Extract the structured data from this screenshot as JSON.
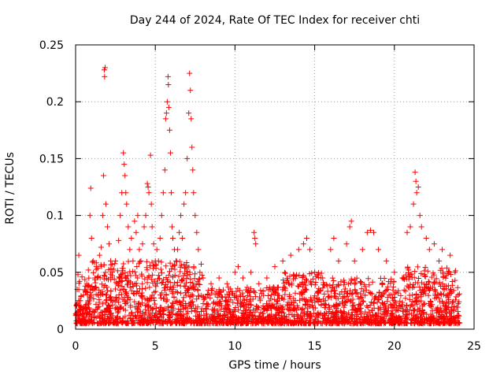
{
  "chart_data": {
    "type": "scatter",
    "title": "Day 244 of 2024, Rate Of TEC Index for receiver chti",
    "xlabel": "GPS time / hours",
    "ylabel": "ROTI / TECUs",
    "xlim": [
      0,
      25
    ],
    "ylim": [
      0,
      0.25
    ],
    "xticks": [
      0,
      5,
      10,
      15,
      20,
      25
    ],
    "yticks": [
      0,
      0.05,
      0.1,
      0.15,
      0.2,
      0.25
    ],
    "xtick_labels": [
      "0",
      "5",
      "10",
      "15",
      "20",
      "25"
    ],
    "ytick_labels": [
      "0",
      "0.05",
      "0.1",
      "0.15",
      "0.2",
      "0.25"
    ],
    "grid": true,
    "marker": "plus",
    "color": "#ff0000",
    "series": [
      {
        "points": [
          [
            0.05,
            0.012
          ],
          [
            0.1,
            0.035
          ],
          [
            0.15,
            0.048
          ],
          [
            0.2,
            0.065
          ],
          [
            0.25,
            0.042
          ],
          [
            0.3,
            0.025
          ],
          [
            0.4,
            0.046
          ],
          [
            0.5,
            0.03
          ],
          [
            0.6,
            0.018
          ],
          [
            0.7,
            0.04
          ],
          [
            0.8,
            0.052
          ],
          [
            0.9,
            0.1
          ],
          [
            0.95,
            0.124
          ],
          [
            1.0,
            0.08
          ],
          [
            1.1,
            0.06
          ],
          [
            1.2,
            0.045
          ],
          [
            1.3,
            0.055
          ],
          [
            1.4,
            0.03
          ],
          [
            1.5,
            0.065
          ],
          [
            1.6,
            0.072
          ],
          [
            1.7,
            0.1
          ],
          [
            1.75,
            0.135
          ],
          [
            1.8,
            0.228
          ],
          [
            1.82,
            0.222
          ],
          [
            1.85,
            0.23
          ],
          [
            1.9,
            0.11
          ],
          [
            2.0,
            0.09
          ],
          [
            2.1,
            0.075
          ],
          [
            2.2,
            0.06
          ],
          [
            2.3,
            0.05
          ],
          [
            2.5,
            0.06
          ],
          [
            2.6,
            0.04
          ],
          [
            2.7,
            0.078
          ],
          [
            2.8,
            0.1
          ],
          [
            2.9,
            0.12
          ],
          [
            3.0,
            0.155
          ],
          [
            3.05,
            0.145
          ],
          [
            3.1,
            0.135
          ],
          [
            3.15,
            0.12
          ],
          [
            3.2,
            0.11
          ],
          [
            3.3,
            0.09
          ],
          [
            3.4,
            0.07
          ],
          [
            3.5,
            0.08
          ],
          [
            3.6,
            0.06
          ],
          [
            3.7,
            0.095
          ],
          [
            3.8,
            0.085
          ],
          [
            3.9,
            0.1
          ],
          [
            4.0,
            0.07
          ],
          [
            4.1,
            0.06
          ],
          [
            4.2,
            0.075
          ],
          [
            4.3,
            0.09
          ],
          [
            4.4,
            0.1
          ],
          [
            4.5,
            0.128
          ],
          [
            4.55,
            0.125
          ],
          [
            4.6,
            0.12
          ],
          [
            4.7,
            0.153
          ],
          [
            4.75,
            0.11
          ],
          [
            4.8,
            0.09
          ],
          [
            4.9,
            0.075
          ],
          [
            5.0,
            0.06
          ],
          [
            5.1,
            0.07
          ],
          [
            5.2,
            0.06
          ],
          [
            5.3,
            0.08
          ],
          [
            5.4,
            0.1
          ],
          [
            5.5,
            0.12
          ],
          [
            5.6,
            0.14
          ],
          [
            5.65,
            0.185
          ],
          [
            5.7,
            0.19
          ],
          [
            5.75,
            0.2
          ],
          [
            5.8,
            0.222
          ],
          [
            5.82,
            0.215
          ],
          [
            5.85,
            0.195
          ],
          [
            5.9,
            0.175
          ],
          [
            5.95,
            0.155
          ],
          [
            6.0,
            0.12
          ],
          [
            6.05,
            0.09
          ],
          [
            6.1,
            0.08
          ],
          [
            6.2,
            0.07
          ],
          [
            6.3,
            0.06
          ],
          [
            6.4,
            0.07
          ],
          [
            6.5,
            0.085
          ],
          [
            6.6,
            0.1
          ],
          [
            6.7,
            0.08
          ],
          [
            6.8,
            0.11
          ],
          [
            6.9,
            0.12
          ],
          [
            7.0,
            0.15
          ],
          [
            7.1,
            0.19
          ],
          [
            7.15,
            0.225
          ],
          [
            7.2,
            0.21
          ],
          [
            7.25,
            0.185
          ],
          [
            7.3,
            0.16
          ],
          [
            7.35,
            0.14
          ],
          [
            7.4,
            0.12
          ],
          [
            7.5,
            0.1
          ],
          [
            7.6,
            0.085
          ],
          [
            7.7,
            0.07
          ],
          [
            7.8,
            0.05
          ],
          [
            8.0,
            0.045
          ],
          [
            8.5,
            0.04
          ],
          [
            9.0,
            0.045
          ],
          [
            9.5,
            0.04
          ],
          [
            10.0,
            0.05
          ],
          [
            10.2,
            0.055
          ],
          [
            10.5,
            0.045
          ],
          [
            11.0,
            0.05
          ],
          [
            11.2,
            0.085
          ],
          [
            11.25,
            0.08
          ],
          [
            11.3,
            0.075
          ],
          [
            11.5,
            0.04
          ],
          [
            12.0,
            0.045
          ],
          [
            12.5,
            0.055
          ],
          [
            13.0,
            0.06
          ],
          [
            13.5,
            0.065
          ],
          [
            14.0,
            0.07
          ],
          [
            14.3,
            0.075
          ],
          [
            14.5,
            0.08
          ],
          [
            14.7,
            0.07
          ],
          [
            15.0,
            0.05
          ],
          [
            15.5,
            0.045
          ],
          [
            16.0,
            0.07
          ],
          [
            16.2,
            0.08
          ],
          [
            16.5,
            0.06
          ],
          [
            17.0,
            0.075
          ],
          [
            17.2,
            0.09
          ],
          [
            17.3,
            0.095
          ],
          [
            17.5,
            0.06
          ],
          [
            18.0,
            0.07
          ],
          [
            18.3,
            0.085
          ],
          [
            18.5,
            0.087
          ],
          [
            18.7,
            0.085
          ],
          [
            19.0,
            0.07
          ],
          [
            19.5,
            0.06
          ],
          [
            20.0,
            0.05
          ],
          [
            20.5,
            0.045
          ],
          [
            20.8,
            0.085
          ],
          [
            21.0,
            0.09
          ],
          [
            21.2,
            0.11
          ],
          [
            21.3,
            0.138
          ],
          [
            21.35,
            0.13
          ],
          [
            21.4,
            0.12
          ],
          [
            21.5,
            0.125
          ],
          [
            21.6,
            0.1
          ],
          [
            21.7,
            0.09
          ],
          [
            22.0,
            0.08
          ],
          [
            22.2,
            0.07
          ],
          [
            22.5,
            0.075
          ],
          [
            22.8,
            0.06
          ],
          [
            23.0,
            0.07
          ],
          [
            23.5,
            0.065
          ],
          [
            23.8,
            0.05
          ],
          [
            24.0,
            0.03
          ]
        ]
      }
    ]
  }
}
